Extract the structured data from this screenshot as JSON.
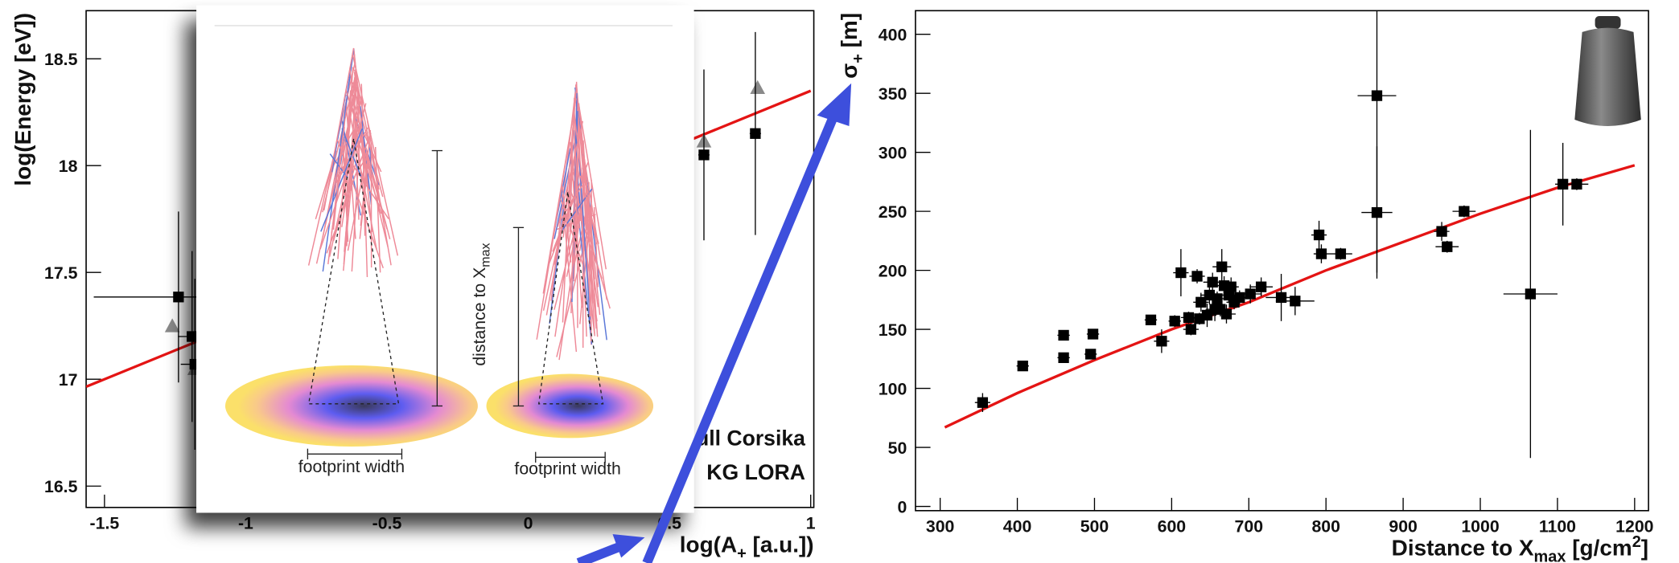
{
  "chart_data": [
    {
      "type": "scatter",
      "xlabel": [
        "log(A",
        "+",
        " [a.u.])"
      ],
      "xlabel_scripts": [
        "normal",
        "sub",
        "normal"
      ],
      "ylabel": "log(Energy [eV])",
      "xlim": [
        -1.565,
        1.011
      ],
      "ylim": [
        16.4,
        18.725
      ],
      "xticks": [
        -1.5,
        -1,
        -0.5,
        0,
        0.5,
        1
      ],
      "yticks": [
        16.5,
        17,
        17.5,
        18,
        18.5
      ],
      "legend": "lower right",
      "series": [
        {
          "name": "ull Corsika",
          "marker": "triangle",
          "color": "#8a8a8a",
          "x": [
            -1.26,
            -1.18,
            0.622,
            0.812
          ],
          "values": [
            17.25,
            17.05,
            18.115,
            18.365
          ]
        },
        {
          "name": "KG LORA",
          "marker": "square",
          "color": "#000000",
          "x": [
            -1.238,
            -1.19,
            -1.18,
            0.622,
            0.804
          ],
          "values": [
            17.385,
            17.2,
            17.07,
            18.05,
            18.15
          ],
          "xerr": [
            0.3,
            0.05,
            0.05,
            0.02,
            0.02
          ],
          "yerr": [
            0.4,
            0.4,
            0.4,
            0.4,
            0.475
          ]
        }
      ],
      "fit": {
        "color": "#e41414",
        "x": [
          -1.565,
          1.0
        ],
        "values": [
          16.965,
          18.35
        ]
      }
    },
    {
      "type": "scatter",
      "xlabel": [
        "Distance to X",
        "max",
        " [g/cm",
        "2",
        "]"
      ],
      "xlabel_scripts": [
        "normal",
        "sub",
        "normal",
        "sup",
        "normal"
      ],
      "ylabel": [
        "σ",
        "+",
        " [m]"
      ],
      "ylabel_scripts": [
        "normal",
        "sub",
        "normal"
      ],
      "xlim": [
        268,
        1218
      ],
      "ylim": [
        -3.6,
        420
      ],
      "xticks": [
        300,
        400,
        500,
        600,
        700,
        800,
        900,
        1000,
        1100,
        1200
      ],
      "yticks": [
        0,
        50,
        100,
        150,
        200,
        250,
        300,
        350,
        400
      ],
      "series": [
        {
          "marker": "square",
          "color": "#000000",
          "x": [
            355,
            407,
            460,
            460,
            495,
            498,
            573,
            587,
            604,
            612,
            622,
            625,
            633,
            636,
            638,
            646,
            649,
            653,
            656,
            659,
            663,
            665,
            668,
            671,
            674,
            677,
            681,
            688,
            702,
            716,
            742,
            760,
            791,
            794,
            819,
            866,
            866,
            950,
            957,
            979,
            1065,
            1107,
            1125
          ],
          "values": [
            88,
            119,
            126,
            145,
            129,
            146,
            158,
            140,
            157,
            198,
            160,
            150,
            195,
            159,
            173,
            162,
            179,
            190,
            167,
            176,
            167,
            203,
            187,
            163,
            179,
            186,
            173,
            177,
            180,
            186,
            177,
            174,
            230,
            214,
            214,
            249,
            348,
            233,
            220,
            250,
            180,
            273,
            273
          ],
          "xerr": [
            10,
            8,
            8,
            8,
            8,
            8,
            8,
            10,
            8,
            10,
            10,
            10,
            10,
            10,
            10,
            12,
            12,
            12,
            12,
            10,
            10,
            12,
            10,
            12,
            10,
            10,
            10,
            12,
            15,
            15,
            20,
            25,
            10,
            10,
            15,
            20,
            25,
            10,
            15,
            15,
            35,
            10,
            15
          ],
          "yerr": [
            8,
            3,
            3,
            4,
            3,
            3,
            3,
            10,
            5,
            20,
            5,
            5,
            6,
            5,
            8,
            10,
            8,
            8,
            10,
            6,
            6,
            15,
            8,
            8,
            6,
            8,
            6,
            6,
            8,
            8,
            20,
            12,
            12,
            8,
            5,
            56,
            150,
            8,
            5,
            5,
            139,
            35,
            5
          ]
        }
      ],
      "fit": {
        "color": "#e41414",
        "x": [
          306,
          400,
          500,
          600,
          700,
          800,
          900,
          1000,
          1100,
          1200
        ],
        "values": [
          67,
          96,
          124,
          150,
          173,
          200,
          224,
          248,
          270,
          289
        ]
      }
    }
  ],
  "diagram": {
    "distance_label": [
      "distance to X",
      "max"
    ],
    "footprint_labels": [
      "footprint width",
      "footprint width"
    ]
  }
}
